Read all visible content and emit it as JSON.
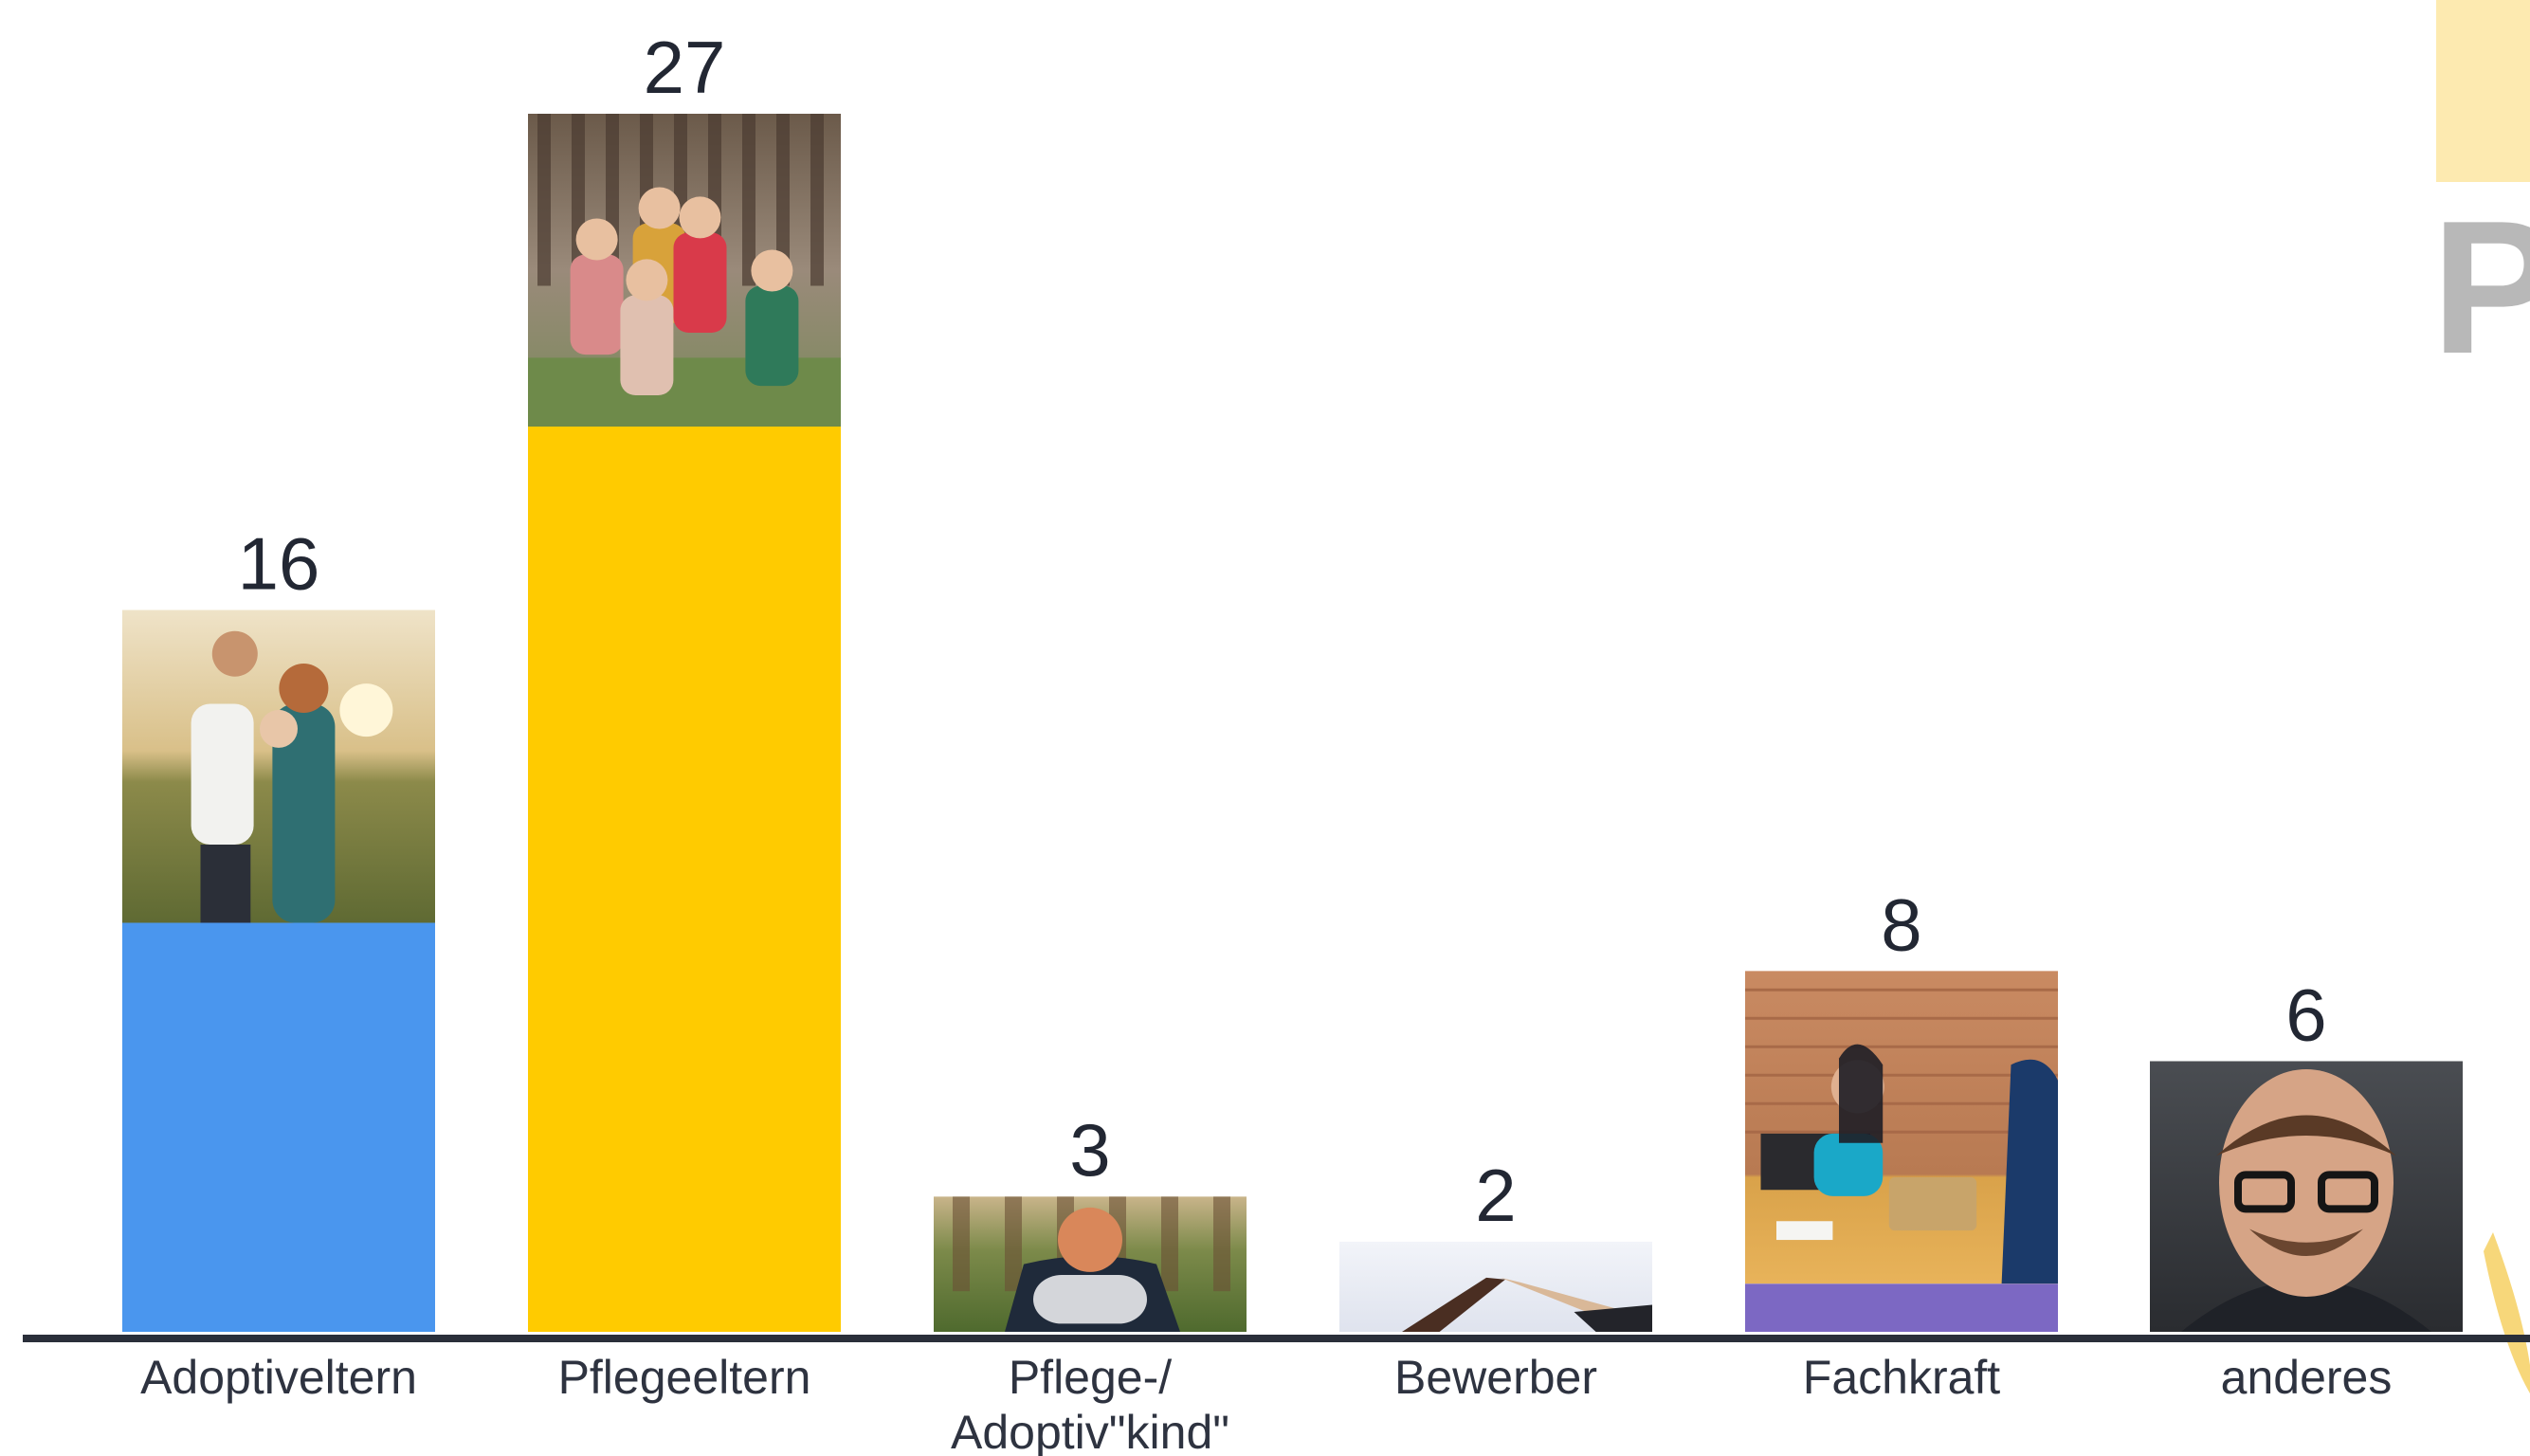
{
  "chart_data": {
    "type": "bar",
    "categories": [
      "Adoptiveltern",
      "Pflegeeltern",
      "Pflege-/\nAdoptiv\"kind\"",
      "Bewerber",
      "Fachkraft",
      "anderes"
    ],
    "values": [
      16,
      27,
      3,
      2,
      8,
      6
    ],
    "ylim": [
      0,
      27
    ],
    "grid": false,
    "legend": "none",
    "bar_colors": [
      "#4a96ee",
      "#ffcb00",
      "#ff0a84",
      "#ff5a8f",
      "#7c68c3",
      "#4a96ee"
    ],
    "bar_images": [
      "couple-with-baby-photo",
      "family-in-forest-photo",
      "girl-with-backpack-photo",
      "holding-hands-photo",
      "office-meeting-photo",
      "man-with-glasses-photo"
    ],
    "axis_color": "#2a2f3a"
  }
}
